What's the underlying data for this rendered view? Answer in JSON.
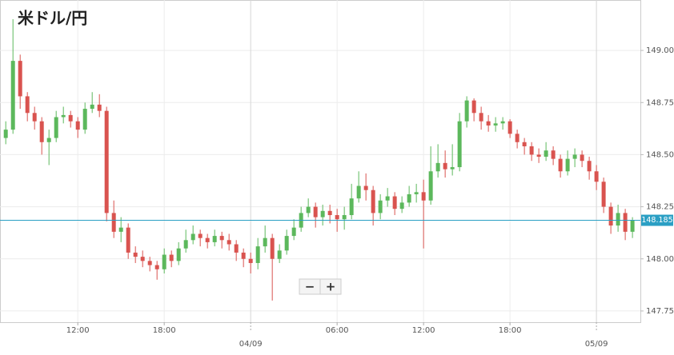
{
  "chart_data": {
    "type": "candlestick",
    "title": "米ドル/円",
    "x": [
      7.0,
      7.5,
      8.0,
      8.5,
      9.0,
      9.5,
      10.0,
      10.5,
      11.0,
      11.5,
      12.0,
      12.5,
      13.0,
      13.5,
      14.0,
      14.5,
      15.0,
      15.5,
      16.0,
      16.5,
      17.0,
      17.5,
      18.0,
      18.5,
      19.0,
      19.5,
      20.0,
      20.5,
      21.0,
      21.5,
      22.0,
      22.5,
      23.0,
      23.5,
      24.0,
      24.5,
      25.0,
      25.5,
      26.0,
      26.5,
      27.0,
      27.5,
      28.0,
      28.5,
      29.0,
      29.5,
      30.0,
      30.5,
      31.0,
      31.5,
      32.0,
      32.5,
      33.0,
      33.5,
      34.0,
      34.5,
      35.0,
      35.5,
      36.0,
      36.5,
      37.0,
      37.5,
      38.0,
      38.5,
      39.0,
      39.5,
      40.0,
      40.5,
      41.0,
      41.5,
      42.0,
      42.5,
      43.0,
      43.5,
      44.0,
      44.5,
      45.0,
      45.5,
      46.0,
      46.5,
      47.0,
      47.5,
      48.0,
      48.5,
      49.0,
      49.5,
      50.0,
      50.5
    ],
    "open": [
      148.58,
      148.62,
      148.95,
      148.78,
      148.7,
      148.66,
      148.56,
      148.58,
      148.68,
      148.69,
      148.66,
      148.62,
      148.72,
      148.74,
      148.71,
      148.22,
      148.13,
      148.15,
      148.03,
      148.01,
      147.99,
      147.97,
      147.95,
      148.02,
      147.99,
      148.05,
      148.09,
      148.12,
      148.1,
      148.08,
      148.11,
      148.09,
      148.07,
      148.03,
      148.0,
      147.98,
      148.06,
      148.1,
      148.0,
      148.04,
      148.11,
      148.15,
      148.22,
      148.25,
      148.2,
      148.23,
      148.21,
      148.19,
      148.21,
      148.29,
      148.35,
      148.33,
      148.22,
      148.28,
      148.3,
      148.24,
      148.27,
      148.31,
      148.32,
      148.28,
      148.42,
      148.46,
      148.43,
      148.44,
      148.66,
      148.76,
      148.7,
      148.66,
      148.64,
      148.65,
      148.66,
      148.6,
      148.56,
      148.54,
      148.5,
      148.49,
      148.52,
      148.48,
      148.42,
      148.48,
      148.5,
      148.47,
      148.42,
      148.37,
      148.25,
      148.16,
      148.22,
      148.13
    ],
    "high": [
      148.66,
      149.15,
      148.98,
      148.8,
      148.73,
      148.68,
      148.62,
      148.71,
      148.73,
      148.71,
      148.68,
      148.75,
      148.8,
      148.79,
      148.73,
      148.28,
      148.2,
      148.17,
      148.06,
      148.04,
      148.01,
      147.99,
      148.05,
      148.04,
      148.08,
      148.14,
      148.16,
      148.14,
      148.12,
      148.14,
      148.13,
      148.12,
      148.09,
      148.05,
      148.03,
      148.1,
      148.16,
      148.12,
      148.07,
      148.14,
      148.19,
      148.25,
      148.29,
      148.27,
      148.26,
      148.26,
      148.24,
      148.25,
      148.36,
      148.42,
      148.41,
      148.35,
      148.31,
      148.34,
      148.32,
      148.3,
      148.35,
      148.36,
      148.38,
      148.54,
      148.55,
      148.52,
      148.55,
      148.7,
      148.78,
      148.77,
      148.73,
      148.69,
      148.68,
      148.68,
      148.67,
      148.62,
      148.58,
      148.56,
      148.53,
      148.56,
      148.54,
      148.5,
      148.52,
      148.53,
      148.52,
      148.49,
      148.45,
      148.39,
      148.27,
      148.26,
      148.24,
      148.2
    ],
    "low": [
      148.55,
      148.6,
      148.72,
      148.66,
      148.62,
      148.5,
      148.45,
      148.56,
      148.65,
      148.63,
      148.58,
      148.6,
      148.7,
      148.68,
      148.18,
      148.1,
      148.08,
      148.0,
      147.98,
      147.96,
      147.94,
      147.9,
      147.93,
      147.96,
      147.97,
      148.03,
      148.07,
      148.06,
      148.05,
      148.06,
      148.05,
      148.04,
      147.99,
      147.96,
      147.93,
      147.95,
      148.03,
      147.8,
      147.98,
      148.02,
      148.09,
      148.13,
      148.2,
      148.15,
      148.16,
      148.17,
      148.13,
      148.14,
      148.19,
      148.27,
      148.28,
      148.16,
      148.19,
      148.25,
      148.21,
      148.22,
      148.25,
      148.27,
      148.05,
      148.26,
      148.39,
      148.39,
      148.4,
      148.42,
      148.63,
      148.66,
      148.62,
      148.61,
      148.61,
      148.62,
      148.58,
      148.53,
      148.5,
      148.47,
      148.46,
      148.47,
      148.45,
      148.39,
      148.4,
      148.44,
      148.44,
      148.38,
      148.33,
      148.22,
      148.12,
      148.13,
      148.09,
      148.1
    ],
    "close": [
      148.62,
      148.95,
      148.78,
      148.7,
      148.66,
      148.56,
      148.58,
      148.68,
      148.69,
      148.66,
      148.62,
      148.72,
      148.74,
      148.71,
      148.22,
      148.13,
      148.15,
      148.03,
      148.01,
      147.99,
      147.97,
      147.95,
      148.02,
      147.99,
      148.05,
      148.09,
      148.12,
      148.1,
      148.08,
      148.11,
      148.09,
      148.07,
      148.03,
      148.0,
      147.98,
      148.06,
      148.1,
      148.0,
      148.04,
      148.11,
      148.15,
      148.22,
      148.25,
      148.2,
      148.23,
      148.21,
      148.19,
      148.21,
      148.29,
      148.35,
      148.33,
      148.22,
      148.28,
      148.3,
      148.24,
      148.27,
      148.31,
      148.32,
      148.28,
      148.42,
      148.46,
      148.43,
      148.44,
      148.66,
      148.76,
      148.7,
      148.66,
      148.64,
      148.65,
      148.66,
      148.6,
      148.56,
      148.54,
      148.5,
      148.49,
      148.52,
      148.48,
      148.42,
      148.48,
      148.5,
      148.47,
      148.42,
      148.37,
      148.25,
      148.16,
      148.22,
      148.13,
      148.185
    ],
    "up_color": "#5cb85c",
    "down_color": "#d9534f",
    "xlim": [
      6.6,
      51.05
    ],
    "xticks": [
      {
        "value": 12,
        "label": "12:00"
      },
      {
        "value": 18,
        "label": "18:00"
      },
      {
        "value": 24,
        "label": "04/09"
      },
      {
        "value": 30,
        "label": "06:00"
      },
      {
        "value": 36,
        "label": "12:00"
      },
      {
        "value": 42,
        "label": "18:00"
      },
      {
        "value": 48,
        "label": "05/09"
      }
    ],
    "ylim": [
      147.696,
      149.242
    ],
    "yticks": [
      {
        "value": 147.75,
        "label": "147.750"
      },
      {
        "value": 148.0,
        "label": "148.000"
      },
      {
        "value": 148.25,
        "label": "148.250"
      },
      {
        "value": 148.5,
        "label": "148.500"
      },
      {
        "value": 148.75,
        "label": "148.750"
      },
      {
        "value": 149.0,
        "label": "149.000"
      }
    ],
    "grid": true,
    "last_price": 148.185,
    "last_price_color": "#2a9fc4",
    "zoom_buttons": [
      "−",
      "+"
    ]
  }
}
